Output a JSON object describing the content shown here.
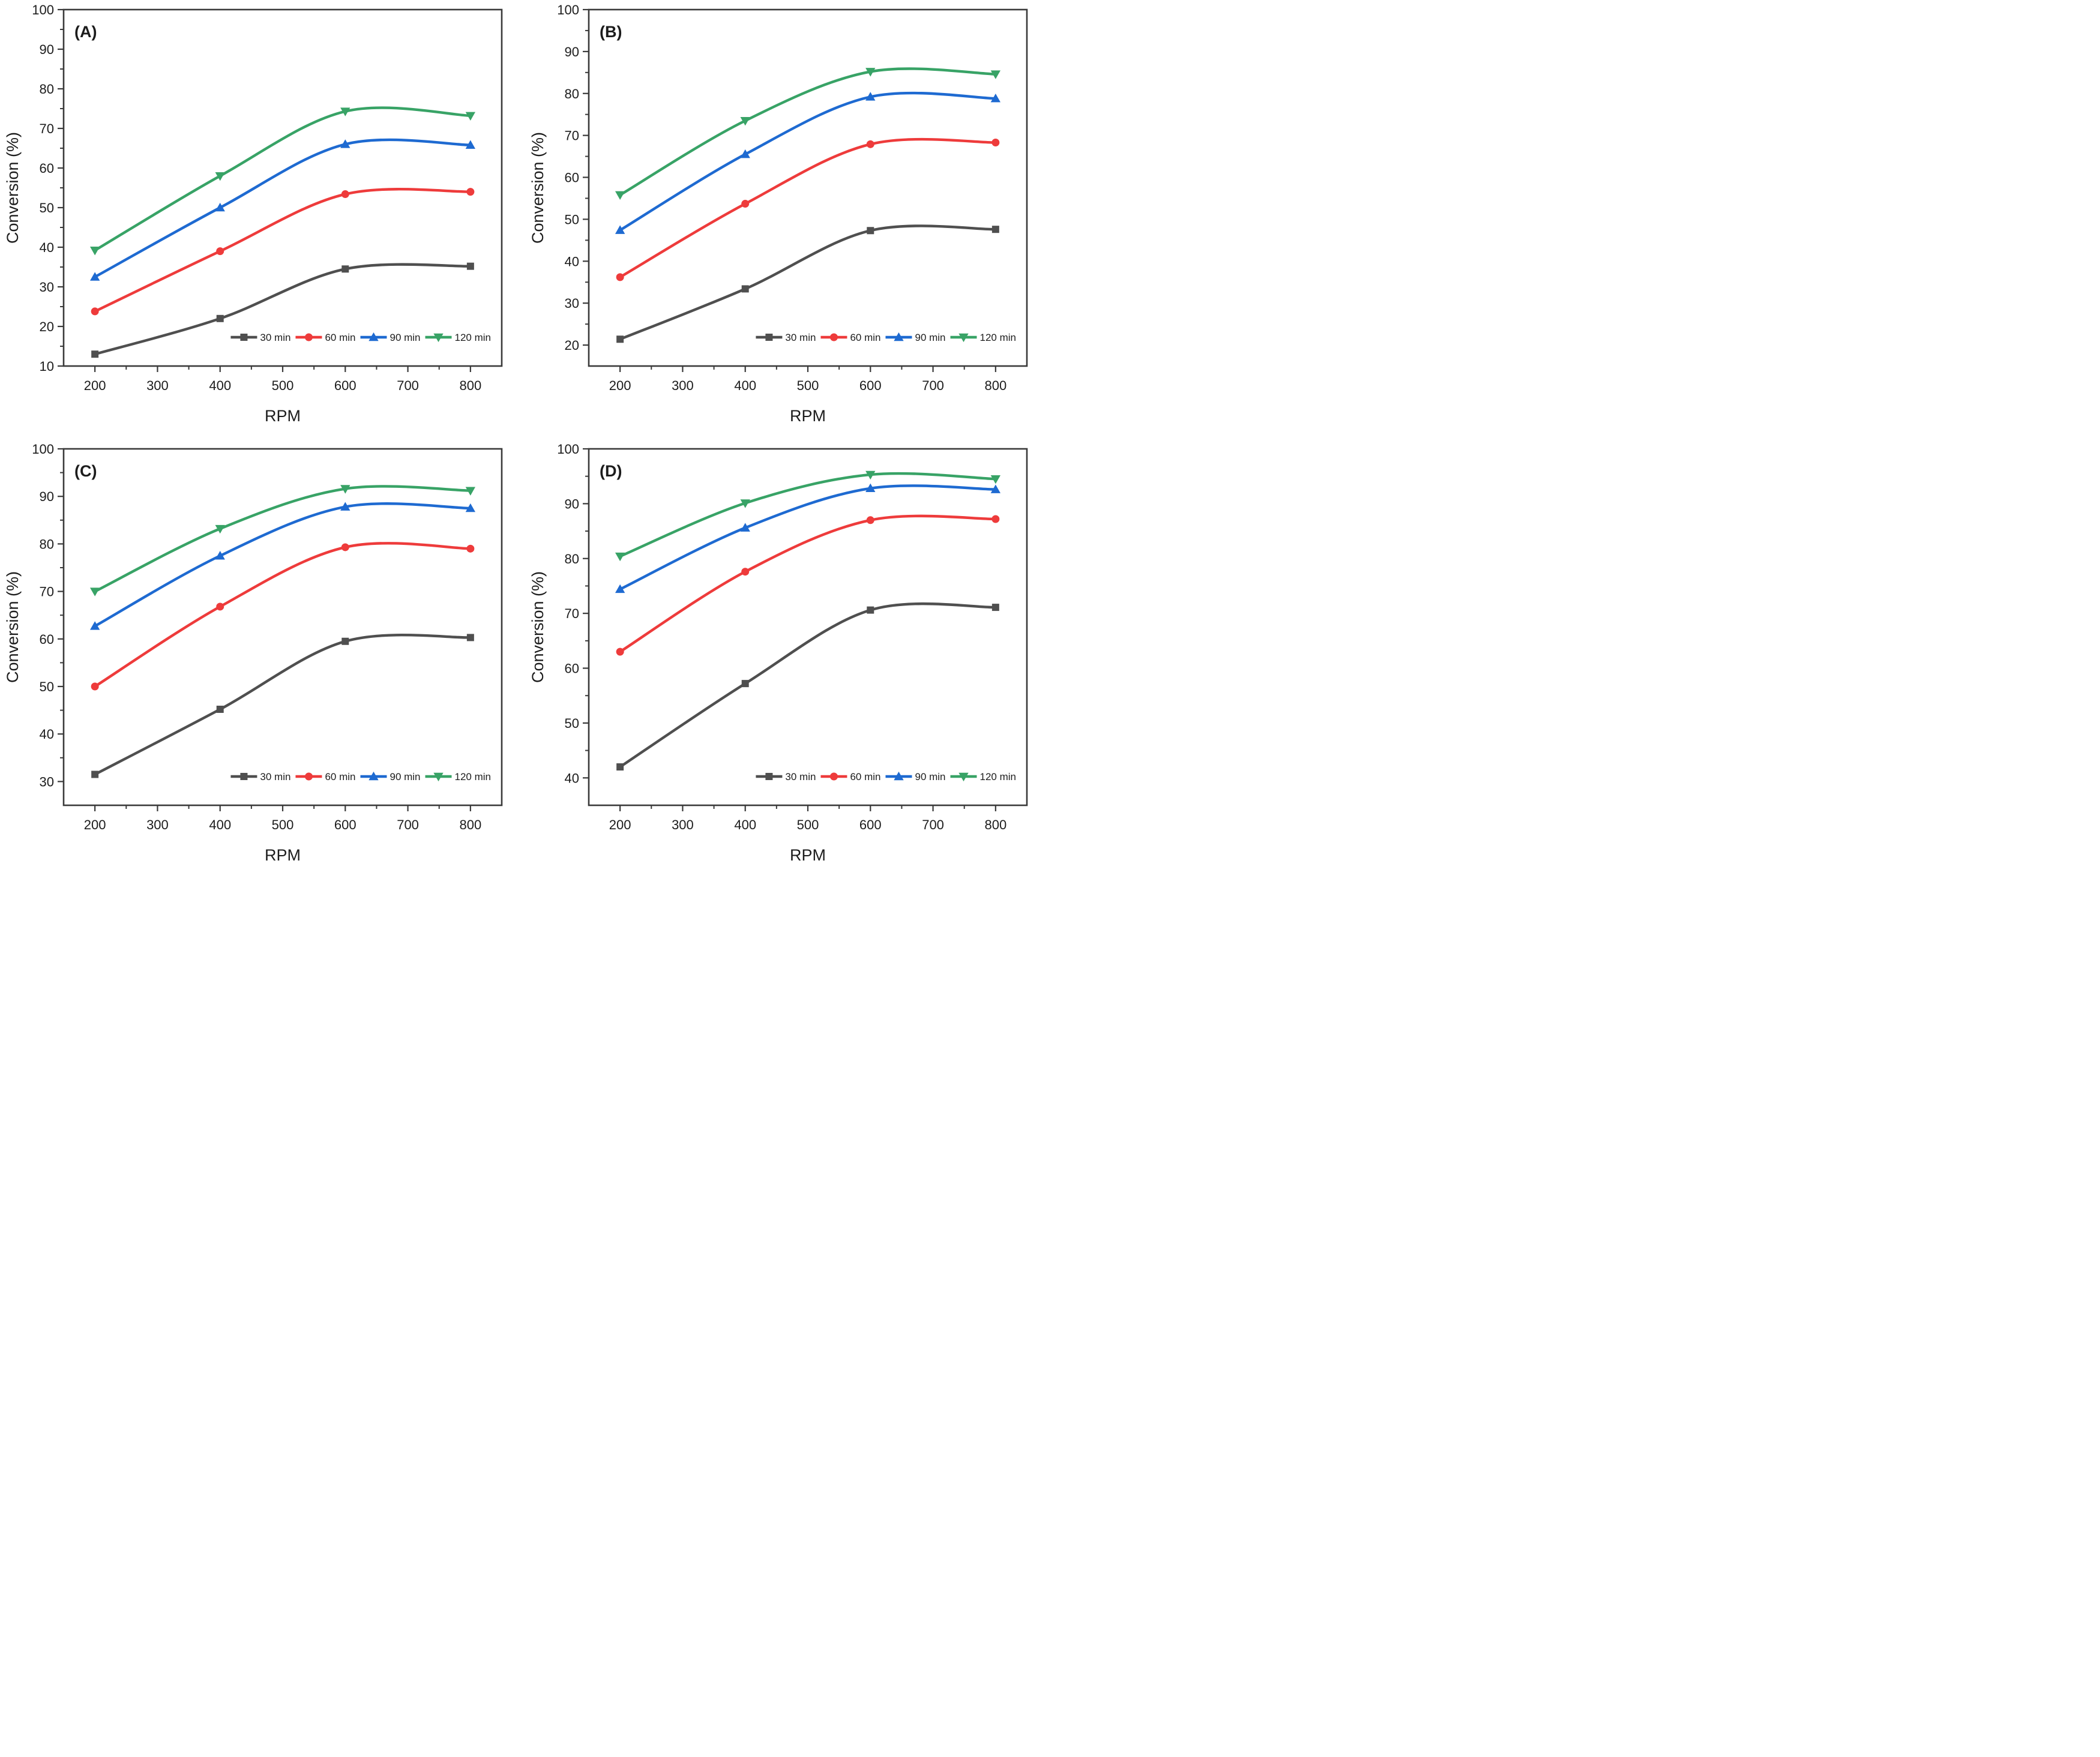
{
  "page": {
    "background": "#ffffff",
    "axis_color": "#3a3a3a",
    "text_color": "#1c1c1c"
  },
  "chart_data": [
    {
      "id": "A",
      "type": "line",
      "panel_label": "(A)",
      "xlabel": "RPM",
      "ylabel": "Conversion (%)",
      "x": [
        200,
        400,
        600,
        800
      ],
      "xlim": [
        150,
        850
      ],
      "x_ticks": [
        200,
        300,
        400,
        500,
        600,
        700,
        800
      ],
      "x_minor_step": 50,
      "ylim": [
        10,
        100
      ],
      "y_ticks": [
        10,
        20,
        30,
        40,
        50,
        60,
        70,
        80,
        90,
        100
      ],
      "y_minor_step": 5,
      "grid": false,
      "legend_position": "inside-bottom-right",
      "series": [
        {
          "name": "30 min",
          "marker": "square",
          "color": "#4f4f4f",
          "values": [
            13.0,
            22.0,
            34.5,
            35.2
          ]
        },
        {
          "name": "60 min",
          "marker": "circle",
          "color": "#ee3b3b",
          "values": [
            23.8,
            39.0,
            53.4,
            54.0
          ]
        },
        {
          "name": "90 min",
          "marker": "triangle-up",
          "color": "#1e6ad1",
          "values": [
            32.5,
            50.0,
            66.0,
            65.8
          ]
        },
        {
          "name": "120 min",
          "marker": "triangle-down",
          "color": "#38a366",
          "values": [
            39.2,
            58.0,
            74.3,
            73.2
          ]
        }
      ]
    },
    {
      "id": "B",
      "type": "line",
      "panel_label": "(B)",
      "xlabel": "RPM",
      "ylabel": "Conversion (%)",
      "x": [
        200,
        400,
        600,
        800
      ],
      "xlim": [
        150,
        850
      ],
      "x_ticks": [
        200,
        300,
        400,
        500,
        600,
        700,
        800
      ],
      "x_minor_step": 50,
      "ylim": [
        15,
        100
      ],
      "y_ticks": [
        20,
        30,
        40,
        50,
        60,
        70,
        80,
        90,
        100
      ],
      "y_minor_step": 5,
      "grid": false,
      "legend_position": "inside-bottom-right",
      "series": [
        {
          "name": "30 min",
          "marker": "square",
          "color": "#4f4f4f",
          "values": [
            21.4,
            33.4,
            47.3,
            47.6
          ]
        },
        {
          "name": "60 min",
          "marker": "circle",
          "color": "#ee3b3b",
          "values": [
            36.2,
            53.7,
            67.9,
            68.3
          ]
        },
        {
          "name": "90 min",
          "marker": "triangle-up",
          "color": "#1e6ad1",
          "values": [
            47.4,
            65.5,
            79.2,
            78.8
          ]
        },
        {
          "name": "120 min",
          "marker": "triangle-down",
          "color": "#38a366",
          "values": [
            55.8,
            73.5,
            85.2,
            84.6
          ]
        }
      ]
    },
    {
      "id": "C",
      "type": "line",
      "panel_label": "(C)",
      "xlabel": "RPM",
      "ylabel": "Conversion (%)",
      "x": [
        200,
        400,
        600,
        800
      ],
      "xlim": [
        150,
        850
      ],
      "x_ticks": [
        200,
        300,
        400,
        500,
        600,
        700,
        800
      ],
      "x_minor_step": 50,
      "ylim": [
        25,
        100
      ],
      "y_ticks": [
        30,
        40,
        50,
        60,
        70,
        80,
        90,
        100
      ],
      "y_minor_step": 5,
      "grid": false,
      "legend_position": "inside-bottom-right",
      "series": [
        {
          "name": "30 min",
          "marker": "square",
          "color": "#4f4f4f",
          "values": [
            31.5,
            45.2,
            59.5,
            60.3
          ]
        },
        {
          "name": "60 min",
          "marker": "circle",
          "color": "#ee3b3b",
          "values": [
            50.0,
            66.8,
            79.3,
            79.0
          ]
        },
        {
          "name": "90 min",
          "marker": "triangle-up",
          "color": "#1e6ad1",
          "values": [
            62.7,
            77.5,
            87.8,
            87.5
          ]
        },
        {
          "name": "120 min",
          "marker": "triangle-down",
          "color": "#38a366",
          "values": [
            70.0,
            83.2,
            91.6,
            91.2
          ]
        }
      ]
    },
    {
      "id": "D",
      "type": "line",
      "panel_label": "(D)",
      "xlabel": "RPM",
      "ylabel": "Conversion (%)",
      "x": [
        200,
        400,
        600,
        800
      ],
      "xlim": [
        150,
        850
      ],
      "x_ticks": [
        200,
        300,
        400,
        500,
        600,
        700,
        800
      ],
      "x_minor_step": 50,
      "ylim": [
        35,
        100
      ],
      "y_ticks": [
        40,
        50,
        60,
        70,
        80,
        90,
        100
      ],
      "y_minor_step": 5,
      "grid": false,
      "legend_position": "inside-bottom-right",
      "series": [
        {
          "name": "30 min",
          "marker": "square",
          "color": "#4f4f4f",
          "values": [
            42.0,
            57.2,
            70.6,
            71.1
          ]
        },
        {
          "name": "60 min",
          "marker": "circle",
          "color": "#ee3b3b",
          "values": [
            63.0,
            77.6,
            87.0,
            87.2
          ]
        },
        {
          "name": "90 min",
          "marker": "triangle-up",
          "color": "#1e6ad1",
          "values": [
            74.4,
            85.6,
            92.8,
            92.6
          ]
        },
        {
          "name": "120 min",
          "marker": "triangle-down",
          "color": "#38a366",
          "values": [
            80.4,
            90.1,
            95.3,
            94.5
          ]
        }
      ]
    }
  ]
}
